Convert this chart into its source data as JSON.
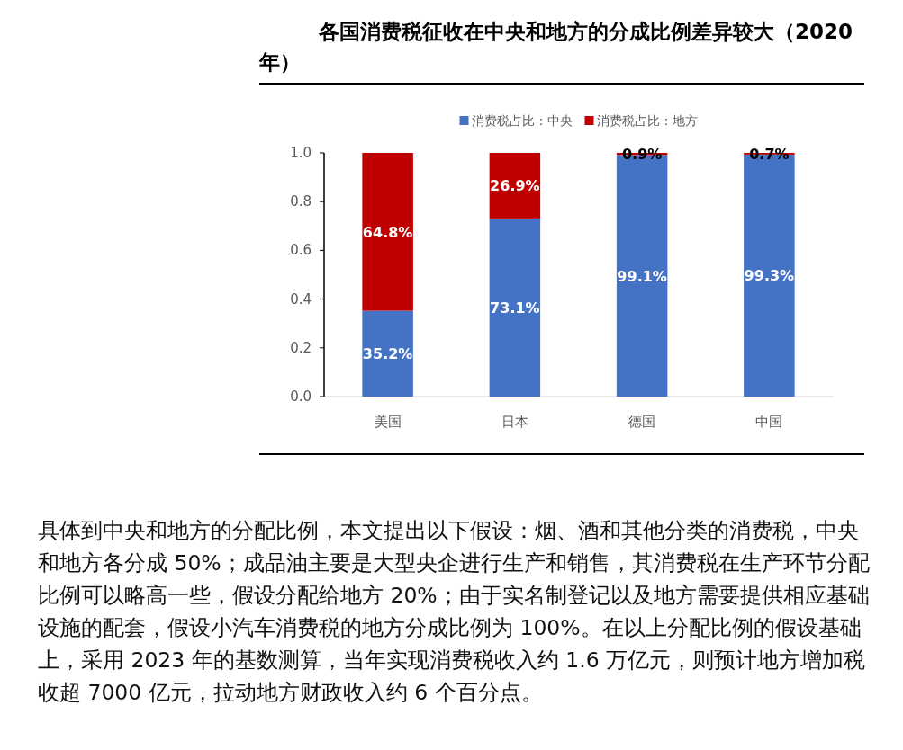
{
  "chart_data": {
    "type": "bar",
    "title": "各国消费税征收在中央和地方的分成比例差异较大（2020年）",
    "categories": [
      "美国",
      "日本",
      "德国",
      "中国"
    ],
    "stacked": true,
    "series": [
      {
        "name": "消费税占比：中央",
        "color": "#4472c4",
        "values": [
          0.352,
          0.731,
          0.991,
          0.993
        ],
        "value_labels": [
          "35.2%",
          "73.1%",
          "99.1%",
          "99.3%"
        ]
      },
      {
        "name": "消费税占比：地方",
        "color": "#c00000",
        "values": [
          0.648,
          0.269,
          0.009,
          0.007
        ],
        "value_labels": [
          "64.8%",
          "26.9%",
          "0.9%",
          "0.7%"
        ]
      }
    ],
    "ylim": [
      0,
      1
    ],
    "yticks": [
      {
        "value": 0,
        "label": "0.0"
      },
      {
        "value": 0.2,
        "label": "0.2"
      },
      {
        "value": 0.4,
        "label": "0.4"
      },
      {
        "value": 0.6,
        "label": "0.6"
      },
      {
        "value": 0.8,
        "label": "0.8"
      },
      {
        "value": 1,
        "label": "1.0"
      }
    ],
    "grid": false,
    "legend": "top",
    "annotations": [
      "具体到中央和地方的分配比例，本文提出以下假设：烟、酒和其他分类的消费税，中央和地方各分成 50%；成品油主要是大型央企进行生产和销售，其消费税在生产环节分配比例可以略高一些，假设分配给地方 20%；由于实名制登记以及地方需要提供相应基础设施的配套，假设小汽车消费税的地方分成比例为 100%。在以上分配比例的假设基础上，采用 2023 年的基数测算，当年实现消费税收入约 1.6 万亿元，则预计地方增加税收超 7000 亿元，拉动地方财政收入约 6 个百分点。"
    ]
  }
}
